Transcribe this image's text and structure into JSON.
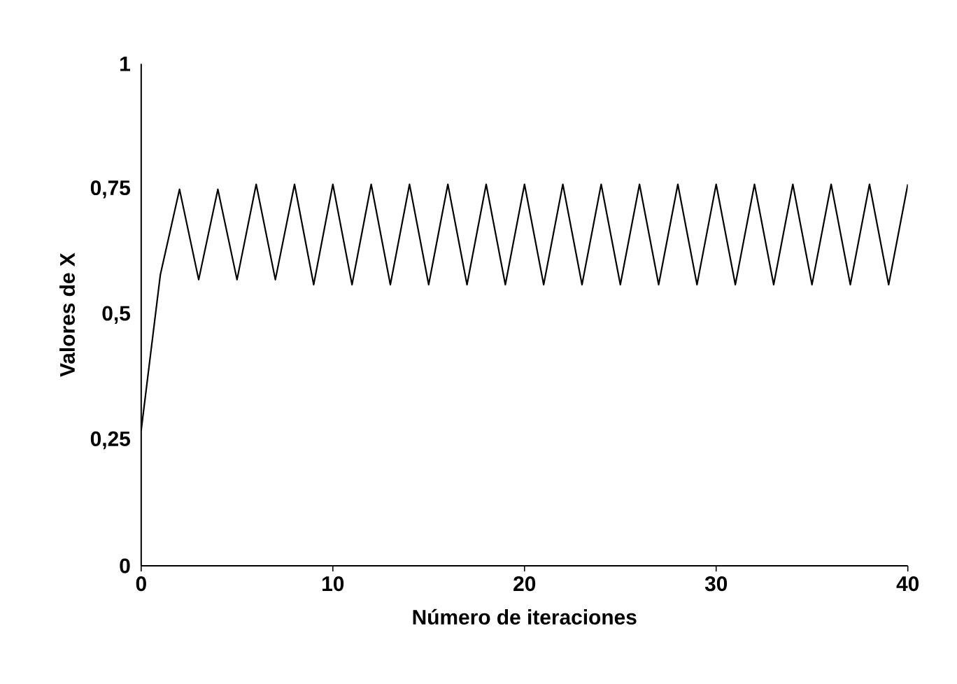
{
  "chart_data": {
    "type": "line",
    "xlabel": "Número de iteraciones",
    "ylabel": "Valores de X",
    "x": [
      0,
      1,
      2,
      3,
      4,
      5,
      6,
      7,
      8,
      9,
      10,
      11,
      12,
      13,
      14,
      15,
      16,
      17,
      18,
      19,
      20,
      21,
      22,
      23,
      24,
      25,
      26,
      27,
      28,
      29,
      30,
      31,
      32,
      33,
      34,
      35,
      36,
      37,
      38,
      39,
      40
    ],
    "series": [
      {
        "color": "#000000",
        "values": [
          0.27,
          0.58,
          0.75,
          0.57,
          0.75,
          0.57,
          0.76,
          0.57,
          0.76,
          0.56,
          0.76,
          0.56,
          0.76,
          0.56,
          0.76,
          0.56,
          0.76,
          0.56,
          0.76,
          0.56,
          0.76,
          0.56,
          0.76,
          0.56,
          0.76,
          0.56,
          0.76,
          0.56,
          0.76,
          0.56,
          0.76,
          0.56,
          0.76,
          0.56,
          0.76,
          0.56,
          0.76,
          0.56,
          0.76,
          0.56,
          0.76
        ]
      }
    ],
    "xlim": [
      0,
      40
    ],
    "xticks": [
      0,
      10,
      20,
      30,
      40
    ],
    "ylim": [
      0,
      1
    ],
    "yticks": [
      {
        "value": 0,
        "label": "0"
      },
      {
        "value": 0.25,
        "label": "0,25"
      },
      {
        "value": 0.5,
        "label": "0,5"
      },
      {
        "value": 0.75,
        "label": "0,75"
      },
      {
        "value": 1,
        "label": "1"
      }
    ],
    "marker": "none",
    "line_style": "solid",
    "grid": false
  }
}
